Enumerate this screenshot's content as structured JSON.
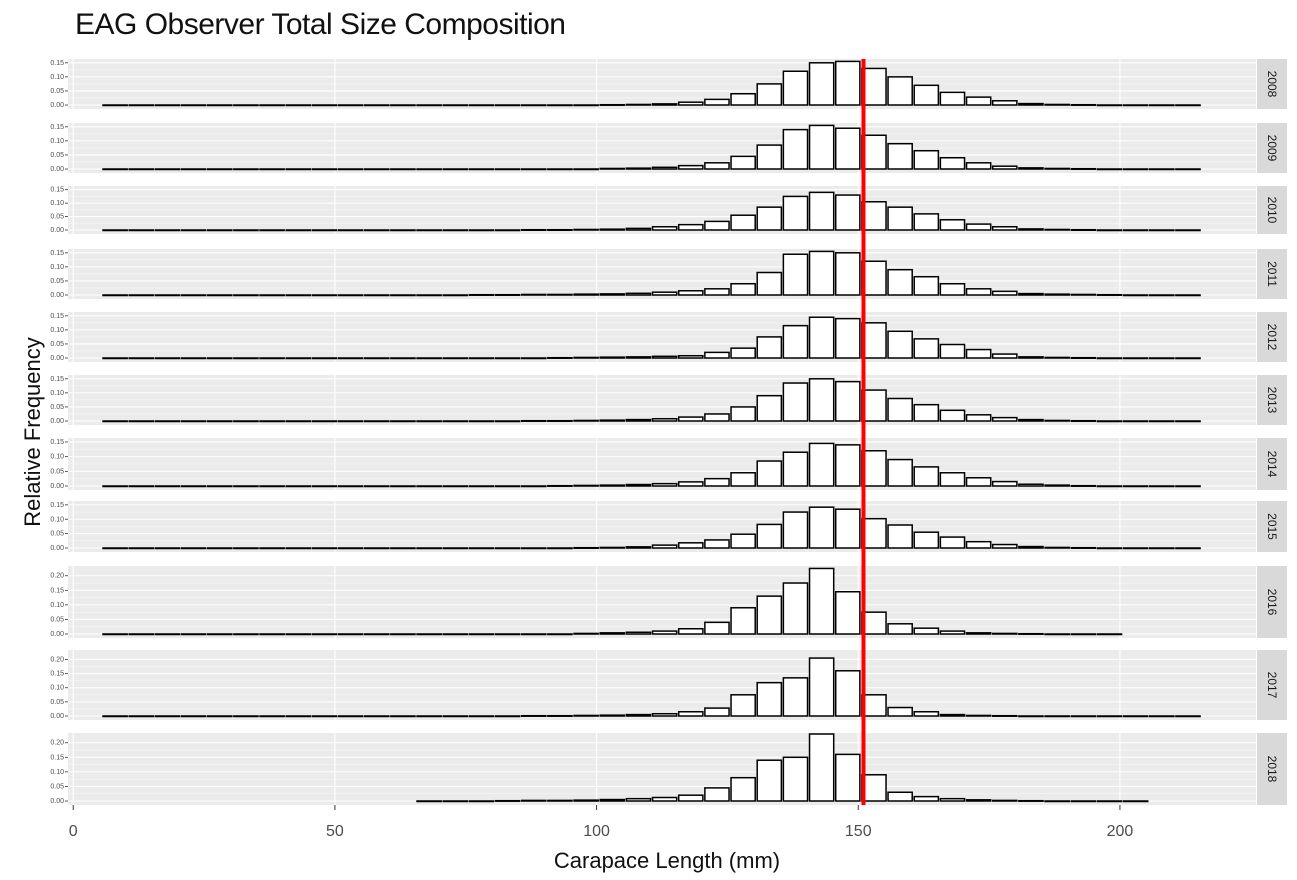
{
  "chart_data": {
    "type": "bar",
    "title": "EAG Observer Total Size Composition",
    "xlabel": "Carapace Length (mm)",
    "ylabel": "Relative Frequency",
    "xlim": [
      -1,
      226
    ],
    "x_ticks": [
      0,
      50,
      100,
      150,
      200
    ],
    "bin_width": 5,
    "reference_line": {
      "x": 151,
      "color": "#ff0000"
    },
    "panels": [
      {
        "label": "2008",
        "ylim": [
          0,
          0.16
        ],
        "y_ticks": [
          "0.00",
          "0.05",
          "0.10",
          "0.15"
        ],
        "tick_values": [
          0,
          0.05,
          0.1,
          0.15
        ],
        "x": [
          8,
          13,
          18,
          23,
          28,
          33,
          38,
          43,
          48,
          53,
          58,
          63,
          68,
          73,
          78,
          83,
          88,
          93,
          98,
          103,
          108,
          113,
          118,
          123,
          128,
          133,
          138,
          143,
          148,
          153,
          158,
          163,
          168,
          173,
          178,
          183,
          188,
          193,
          198,
          203,
          208,
          213
        ],
        "values": [
          0,
          0,
          0,
          0,
          0,
          0,
          0,
          0,
          0,
          0,
          0,
          0,
          0,
          0,
          0,
          0,
          0,
          0,
          0,
          0.001,
          0.002,
          0.004,
          0.01,
          0.02,
          0.04,
          0.075,
          0.12,
          0.15,
          0.155,
          0.13,
          0.1,
          0.07,
          0.045,
          0.028,
          0.015,
          0.005,
          0.002,
          0.001,
          0,
          0,
          0,
          0
        ]
      },
      {
        "label": "2009",
        "ylim": [
          0,
          0.16
        ],
        "y_ticks": [
          "0.00",
          "0.05",
          "0.10",
          "0.15"
        ],
        "tick_values": [
          0,
          0.05,
          0.1,
          0.15
        ],
        "x": [
          8,
          13,
          18,
          23,
          28,
          33,
          38,
          43,
          48,
          53,
          58,
          63,
          68,
          73,
          78,
          83,
          88,
          93,
          98,
          103,
          108,
          113,
          118,
          123,
          128,
          133,
          138,
          143,
          148,
          153,
          158,
          163,
          168,
          173,
          178,
          183,
          188,
          193,
          198,
          203,
          208,
          213
        ],
        "values": [
          0,
          0,
          0,
          0,
          0,
          0,
          0,
          0,
          0,
          0,
          0,
          0,
          0,
          0,
          0,
          0,
          0,
          0,
          0,
          0.002,
          0.003,
          0.006,
          0.012,
          0.022,
          0.045,
          0.085,
          0.14,
          0.155,
          0.145,
          0.12,
          0.09,
          0.065,
          0.04,
          0.022,
          0.01,
          0.004,
          0.002,
          0.001,
          0,
          0,
          0,
          0
        ]
      },
      {
        "label": "2010",
        "ylim": [
          0,
          0.16
        ],
        "y_ticks": [
          "0.00",
          "0.05",
          "0.10",
          "0.15"
        ],
        "tick_values": [
          0,
          0.05,
          0.1,
          0.15
        ],
        "x": [
          8,
          13,
          18,
          23,
          28,
          33,
          38,
          43,
          48,
          53,
          58,
          63,
          68,
          73,
          78,
          83,
          88,
          93,
          98,
          103,
          108,
          113,
          118,
          123,
          128,
          133,
          138,
          143,
          148,
          153,
          158,
          163,
          168,
          173,
          178,
          183,
          188,
          193,
          198,
          203,
          208,
          213
        ],
        "values": [
          0,
          0,
          0,
          0,
          0,
          0,
          0,
          0,
          0,
          0,
          0,
          0,
          0,
          0,
          0,
          0,
          0.001,
          0.001,
          0.002,
          0.003,
          0.006,
          0.012,
          0.02,
          0.032,
          0.055,
          0.085,
          0.125,
          0.14,
          0.13,
          0.105,
          0.085,
          0.06,
          0.038,
          0.022,
          0.012,
          0.004,
          0.002,
          0.001,
          0,
          0,
          0,
          0
        ]
      },
      {
        "label": "2011",
        "ylim": [
          0,
          0.16
        ],
        "y_ticks": [
          "0.00",
          "0.05",
          "0.10",
          "0.15"
        ],
        "tick_values": [
          0,
          0.05,
          0.1,
          0.15
        ],
        "x": [
          8,
          13,
          18,
          23,
          28,
          33,
          38,
          43,
          48,
          53,
          58,
          63,
          68,
          73,
          78,
          83,
          88,
          93,
          98,
          103,
          108,
          113,
          118,
          123,
          128,
          133,
          138,
          143,
          148,
          153,
          158,
          163,
          168,
          173,
          178,
          183,
          188,
          193,
          198,
          203,
          208,
          213
        ],
        "values": [
          0,
          0,
          0,
          0,
          0,
          0,
          0,
          0,
          0,
          0,
          0,
          0,
          0,
          0,
          0.001,
          0.001,
          0.002,
          0.002,
          0.003,
          0.004,
          0.006,
          0.01,
          0.015,
          0.022,
          0.04,
          0.08,
          0.145,
          0.155,
          0.15,
          0.12,
          0.09,
          0.065,
          0.04,
          0.022,
          0.013,
          0.005,
          0.003,
          0.002,
          0.001,
          0,
          0,
          0
        ]
      },
      {
        "label": "2012",
        "ylim": [
          0,
          0.16
        ],
        "y_ticks": [
          "0.00",
          "0.05",
          "0.10",
          "0.15"
        ],
        "tick_values": [
          0,
          0.05,
          0.1,
          0.15
        ],
        "x": [
          8,
          13,
          18,
          23,
          28,
          33,
          38,
          43,
          48,
          53,
          58,
          63,
          68,
          73,
          78,
          83,
          88,
          93,
          98,
          103,
          108,
          113,
          118,
          123,
          128,
          133,
          138,
          143,
          148,
          153,
          158,
          163,
          168,
          173,
          178,
          183,
          188,
          193,
          198,
          203,
          208,
          213
        ],
        "values": [
          0,
          0,
          0,
          0,
          0,
          0,
          0,
          0,
          0,
          0,
          0,
          0,
          0,
          0,
          0,
          0,
          0,
          0.001,
          0.002,
          0.003,
          0.004,
          0.006,
          0.008,
          0.02,
          0.035,
          0.075,
          0.115,
          0.145,
          0.14,
          0.125,
          0.095,
          0.068,
          0.048,
          0.03,
          0.014,
          0.004,
          0.002,
          0.001,
          0,
          0,
          0,
          0
        ]
      },
      {
        "label": "2013",
        "ylim": [
          0,
          0.16
        ],
        "y_ticks": [
          "0.00",
          "0.05",
          "0.10",
          "0.15"
        ],
        "tick_values": [
          0,
          0.05,
          0.1,
          0.15
        ],
        "x": [
          8,
          13,
          18,
          23,
          28,
          33,
          38,
          43,
          48,
          53,
          58,
          63,
          68,
          73,
          78,
          83,
          88,
          93,
          98,
          103,
          108,
          113,
          118,
          123,
          128,
          133,
          138,
          143,
          148,
          153,
          158,
          163,
          168,
          173,
          178,
          183,
          188,
          193,
          198,
          203,
          208,
          213
        ],
        "values": [
          0,
          0,
          0,
          0,
          0,
          0,
          0,
          0,
          0,
          0,
          0,
          0,
          0,
          0,
          0,
          0,
          0.001,
          0.001,
          0.002,
          0.003,
          0.005,
          0.008,
          0.014,
          0.025,
          0.05,
          0.09,
          0.135,
          0.15,
          0.14,
          0.11,
          0.08,
          0.058,
          0.038,
          0.022,
          0.012,
          0.005,
          0.002,
          0.001,
          0,
          0,
          0,
          0
        ]
      },
      {
        "label": "2014",
        "ylim": [
          0,
          0.16
        ],
        "y_ticks": [
          "0.00",
          "0.05",
          "0.10",
          "0.15"
        ],
        "tick_values": [
          0,
          0.05,
          0.1,
          0.15
        ],
        "x": [
          8,
          13,
          18,
          23,
          28,
          33,
          38,
          43,
          48,
          53,
          58,
          63,
          68,
          73,
          78,
          83,
          88,
          93,
          98,
          103,
          108,
          113,
          118,
          123,
          128,
          133,
          138,
          143,
          148,
          153,
          158,
          163,
          168,
          173,
          178,
          183,
          188,
          193,
          198,
          203,
          208,
          213
        ],
        "values": [
          0,
          0,
          0,
          0,
          0,
          0,
          0,
          0,
          0,
          0,
          0,
          0,
          0,
          0,
          0,
          0,
          0,
          0.001,
          0.002,
          0.003,
          0.005,
          0.008,
          0.014,
          0.025,
          0.045,
          0.085,
          0.115,
          0.145,
          0.14,
          0.12,
          0.09,
          0.065,
          0.045,
          0.028,
          0.015,
          0.006,
          0.003,
          0.001,
          0,
          0,
          0,
          0
        ]
      },
      {
        "label": "2015",
        "ylim": [
          0,
          0.16
        ],
        "y_ticks": [
          "0.00",
          "0.05",
          "0.10",
          "0.15"
        ],
        "tick_values": [
          0,
          0.05,
          0.1,
          0.15
        ],
        "x": [
          8,
          13,
          18,
          23,
          28,
          33,
          38,
          43,
          48,
          53,
          58,
          63,
          68,
          73,
          78,
          83,
          88,
          93,
          98,
          103,
          108,
          113,
          118,
          123,
          128,
          133,
          138,
          143,
          148,
          153,
          158,
          163,
          168,
          173,
          178,
          183,
          188,
          193,
          198,
          203,
          208,
          213
        ],
        "values": [
          0,
          0,
          0,
          0,
          0,
          0,
          0,
          0,
          0,
          0,
          0,
          0,
          0,
          0,
          0,
          0,
          0,
          0,
          0.001,
          0.002,
          0.004,
          0.01,
          0.018,
          0.028,
          0.048,
          0.082,
          0.125,
          0.142,
          0.135,
          0.102,
          0.08,
          0.055,
          0.038,
          0.022,
          0.012,
          0.005,
          0.002,
          0.001,
          0,
          0,
          0,
          0
        ]
      },
      {
        "label": "2016",
        "ylim": [
          0,
          0.23
        ],
        "y_ticks": [
          "0.00",
          "0.05",
          "0.10",
          "0.15",
          "0.20"
        ],
        "tick_values": [
          0,
          0.05,
          0.1,
          0.15,
          0.2
        ],
        "x": [
          8,
          13,
          18,
          23,
          28,
          33,
          38,
          43,
          48,
          53,
          58,
          63,
          68,
          73,
          78,
          83,
          88,
          93,
          98,
          103,
          108,
          113,
          118,
          123,
          128,
          133,
          138,
          143,
          148,
          153,
          158,
          163,
          168,
          173,
          178,
          183,
          188,
          193,
          198
        ],
        "values": [
          0,
          0,
          0,
          0,
          0,
          0,
          0,
          0,
          0,
          0,
          0,
          0,
          0,
          0,
          0,
          0,
          0,
          0,
          0.002,
          0.004,
          0.006,
          0.01,
          0.018,
          0.04,
          0.09,
          0.13,
          0.175,
          0.225,
          0.145,
          0.075,
          0.035,
          0.02,
          0.01,
          0.004,
          0.002,
          0.001,
          0,
          0,
          0
        ]
      },
      {
        "label": "2017",
        "ylim": [
          0,
          0.23
        ],
        "y_ticks": [
          "0.00",
          "0.05",
          "0.10",
          "0.15",
          "0.20"
        ],
        "tick_values": [
          0,
          0.05,
          0.1,
          0.15,
          0.2
        ],
        "x": [
          8,
          13,
          18,
          23,
          28,
          33,
          38,
          43,
          48,
          53,
          58,
          63,
          68,
          73,
          78,
          83,
          88,
          93,
          98,
          103,
          108,
          113,
          118,
          123,
          128,
          133,
          138,
          143,
          148,
          153,
          158,
          163,
          168,
          173,
          178,
          183,
          188,
          193,
          198,
          203,
          208,
          213
        ],
        "values": [
          0,
          0,
          0,
          0,
          0,
          0,
          0,
          0,
          0,
          0,
          0,
          0,
          0,
          0,
          0,
          0,
          0.001,
          0.001,
          0.002,
          0.003,
          0.005,
          0.008,
          0.015,
          0.028,
          0.075,
          0.118,
          0.135,
          0.205,
          0.16,
          0.075,
          0.03,
          0.015,
          0.005,
          0.002,
          0.001,
          0,
          0,
          0,
          0,
          0,
          0,
          0
        ]
      },
      {
        "label": "2018",
        "ylim": [
          0,
          0.23
        ],
        "y_ticks": [
          "0.00",
          "0.05",
          "0.10",
          "0.15",
          "0.20"
        ],
        "tick_values": [
          0,
          0.05,
          0.1,
          0.15,
          0.2
        ],
        "x": [
          68,
          73,
          78,
          83,
          88,
          93,
          98,
          103,
          108,
          113,
          118,
          123,
          128,
          133,
          138,
          143,
          148,
          153,
          158,
          163,
          168,
          173,
          178,
          183,
          188,
          193,
          198,
          203
        ],
        "values": [
          0,
          0,
          0,
          0.001,
          0.002,
          0.002,
          0.003,
          0.005,
          0.008,
          0.012,
          0.02,
          0.045,
          0.08,
          0.14,
          0.15,
          0.23,
          0.16,
          0.09,
          0.03,
          0.015,
          0.008,
          0.004,
          0.002,
          0.001,
          0,
          0,
          0,
          0
        ]
      }
    ]
  }
}
